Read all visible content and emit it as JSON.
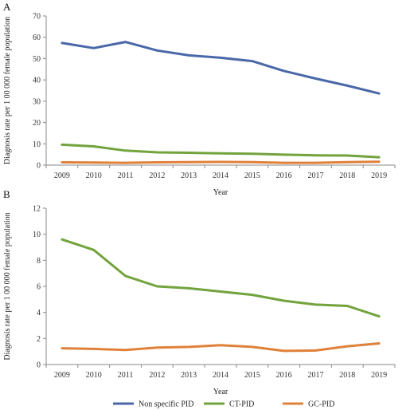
{
  "chart_data": [
    {
      "type": "line",
      "panel": "A",
      "xlabel": "Year",
      "ylabel": "Diagnosis rate per 1 00 000 female population",
      "ylim": [
        0,
        70
      ],
      "yticks": [
        0,
        10,
        20,
        30,
        40,
        50,
        60,
        70
      ],
      "categories": [
        "2009",
        "2010",
        "2011",
        "2012",
        "2013",
        "2014",
        "2015",
        "2016",
        "2017",
        "2018",
        "2019"
      ],
      "series": [
        {
          "name": "Non specific PID",
          "color": "#4a68a8",
          "values": [
            57.3,
            54.9,
            57.8,
            53.8,
            51.5,
            50.4,
            48.8,
            44.2,
            40.6,
            37.3,
            33.6
          ]
        },
        {
          "name": "CT-PID",
          "color": "#72a33d",
          "values": [
            9.6,
            8.8,
            6.8,
            6.0,
            5.8,
            5.5,
            5.3,
            4.9,
            4.6,
            4.5,
            3.7
          ]
        },
        {
          "name": "GC-PID",
          "color": "#e0813a",
          "values": [
            1.3,
            1.2,
            1.1,
            1.3,
            1.4,
            1.5,
            1.4,
            1.1,
            1.1,
            1.4,
            1.6
          ]
        }
      ],
      "grid": false
    },
    {
      "type": "line",
      "panel": "B",
      "xlabel": "Year",
      "ylabel": "Diagnosis rate per 1 00 000 female population",
      "ylim": [
        0,
        12
      ],
      "yticks": [
        0,
        2,
        4,
        6,
        8,
        10,
        12
      ],
      "categories": [
        "2009",
        "2010",
        "2011",
        "2012",
        "2013",
        "2014",
        "2015",
        "2016",
        "2017",
        "2018",
        "2019"
      ],
      "series": [
        {
          "name": "CT-PID",
          "color": "#72a33d",
          "values": [
            9.6,
            8.8,
            6.8,
            6.0,
            5.85,
            5.6,
            5.35,
            4.9,
            4.6,
            4.5,
            3.7
          ]
        },
        {
          "name": "GC-PID",
          "color": "#e0813a",
          "values": [
            1.25,
            1.2,
            1.12,
            1.3,
            1.35,
            1.48,
            1.35,
            1.05,
            1.08,
            1.4,
            1.62
          ]
        }
      ],
      "grid": false
    }
  ],
  "legend": {
    "placement": "bottom",
    "items": [
      {
        "label": "Non specific PID",
        "color": "#4a68a8"
      },
      {
        "label": "CT-PID",
        "color": "#72a33d"
      },
      {
        "label": "GC-PID",
        "color": "#e0813a"
      }
    ]
  }
}
